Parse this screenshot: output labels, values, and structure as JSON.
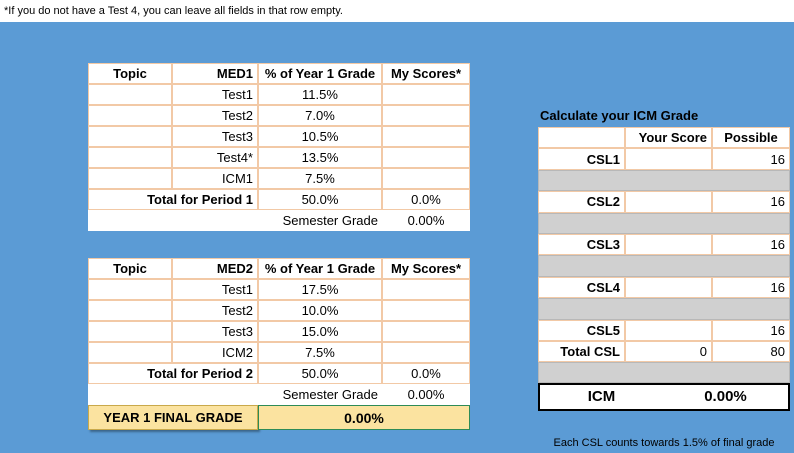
{
  "note": "*If you do not have a Test 4, you can leave all fields in that row empty.",
  "period1": {
    "headers": [
      "Topic",
      "MED1",
      "% of Year 1 Grade",
      "My Scores*"
    ],
    "rows": [
      [
        "Test1",
        "11.5%"
      ],
      [
        "Test2",
        "7.0%"
      ],
      [
        "Test3",
        "10.5%"
      ],
      [
        "Test4*",
        "13.5%"
      ],
      [
        "ICM1",
        "7.5%"
      ]
    ],
    "total": [
      "Total for Period 1",
      "50.0%",
      "0.0%"
    ],
    "semester": [
      "Semester Grade",
      "0.00%"
    ]
  },
  "period2": {
    "headers": [
      "Topic",
      "MED2",
      "% of Year 1 Grade",
      "My Scores*"
    ],
    "rows": [
      [
        "Test1",
        "17.5%"
      ],
      [
        "Test2",
        "10.0%"
      ],
      [
        "Test3",
        "15.0%"
      ],
      [
        "ICM2",
        "7.5%"
      ]
    ],
    "total": [
      "Total for Period 2",
      "50.0%",
      "0.0%"
    ],
    "semester": [
      "Semester Grade",
      "0.00%"
    ]
  },
  "final": [
    "YEAR 1 FINAL GRADE",
    "0.00%"
  ],
  "icm": {
    "title": "Calculate your ICM Grade",
    "headers": [
      "Your Score",
      "Possible"
    ],
    "rows": [
      [
        "CSL1",
        "16"
      ],
      [
        "CSL2",
        "16"
      ],
      [
        "CSL3",
        "16"
      ],
      [
        "CSL4",
        "16"
      ],
      [
        "CSL5",
        "16"
      ]
    ],
    "total": [
      "Total CSL",
      "0",
      "80"
    ],
    "result": [
      "ICM",
      "0.00%"
    ],
    "footnote": "Each CSL counts towards 1.5% of final grade"
  }
}
